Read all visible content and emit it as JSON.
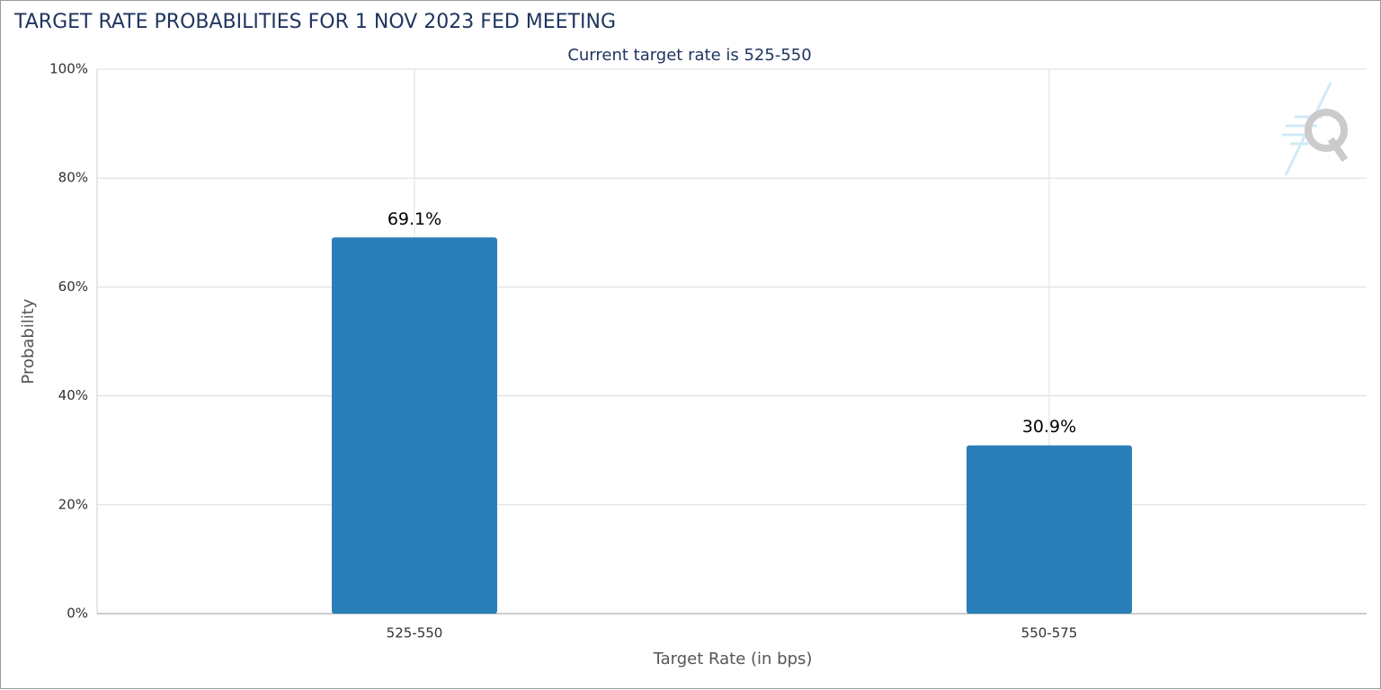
{
  "chart_data": {
    "type": "bar",
    "title": "TARGET RATE PROBABILITIES FOR 1 NOV 2023 FED MEETING",
    "subtitle": "Current target rate is 525-550",
    "x_label": "Target Rate (in bps)",
    "y_label": "Probability",
    "categories": [
      "525-550",
      "550-575"
    ],
    "values": [
      69.1,
      30.9
    ],
    "value_labels": [
      "69.1%",
      "30.9%"
    ],
    "color": "#2a7fb8",
    "ylim": [
      0,
      100
    ],
    "yticks": [
      {
        "value": 0,
        "label": "0%"
      },
      {
        "value": 20,
        "label": "20%"
      },
      {
        "value": 40,
        "label": "40%"
      },
      {
        "value": 60,
        "label": "60%"
      },
      {
        "value": 80,
        "label": "80%"
      },
      {
        "value": 100,
        "label": "100%"
      }
    ],
    "grid": true
  }
}
